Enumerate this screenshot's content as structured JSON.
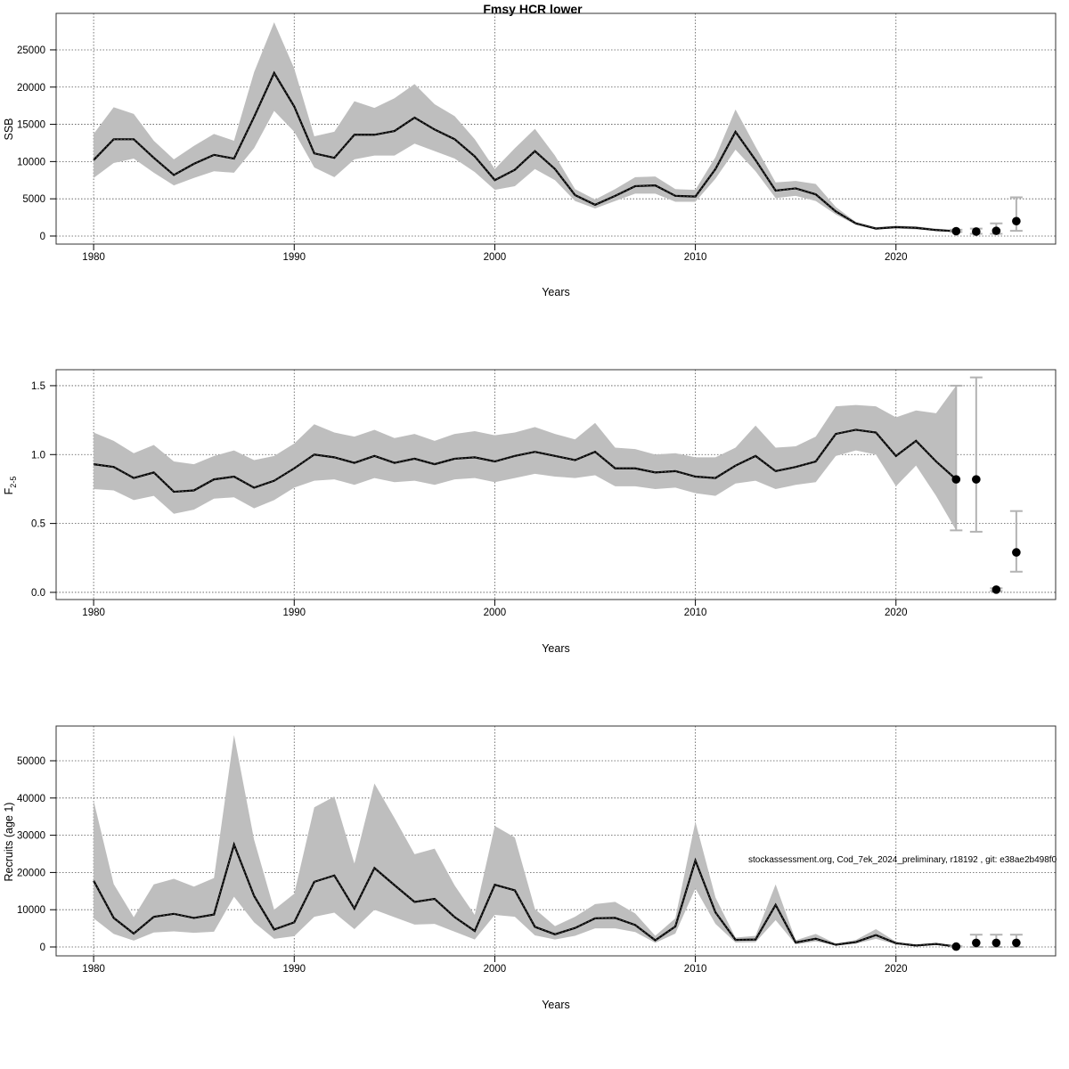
{
  "title": "Fmsy HCR lower",
  "watermark": "stockassessment.org, Cod_7ek_2024_preliminary, r18192 , git: e38ae2b498f0",
  "colors": {
    "band": "#bebebe",
    "line": "#000000",
    "grid": "#555555",
    "errorbar": "#b3b3b3",
    "point": "#000000"
  },
  "chart_data": [
    {
      "type": "line",
      "id": "ssb",
      "xlabel": "Years",
      "ylabel": "SSB",
      "xlim": [
        1978.13,
        2027.96
      ],
      "ylim": [
        -1080,
        29900
      ],
      "xticks": [
        1980,
        1990,
        2000,
        2010,
        2020
      ],
      "yticks": [
        0,
        5000,
        10000,
        15000,
        20000,
        25000
      ],
      "grid": true,
      "x_start": 1980,
      "estimate": [
        10200,
        13000,
        13000,
        10500,
        8200,
        9700,
        10900,
        10400,
        16000,
        21900,
        17400,
        11100,
        10500,
        13600,
        13600,
        14100,
        15900,
        14300,
        13000,
        10700,
        7500,
        8900,
        11400,
        9000,
        5500,
        4200,
        5400,
        6700,
        6800,
        5400,
        5300,
        9000,
        14000,
        10200,
        6100,
        6400,
        5600,
        3300,
        1700,
        1000,
        1200,
        1100,
        800,
        650
      ],
      "lower": [
        7800,
        9800,
        10400,
        8500,
        6800,
        7800,
        8700,
        8500,
        11800,
        16800,
        14000,
        9200,
        7900,
        10300,
        10800,
        10800,
        12400,
        11400,
        10400,
        8600,
        6200,
        6700,
        9000,
        7500,
        4700,
        3700,
        4700,
        5700,
        5700,
        4600,
        4600,
        7700,
        11600,
        8700,
        5100,
        5400,
        4700,
        2900,
        1500,
        900,
        1000,
        900,
        700,
        550
      ],
      "upper": [
        13700,
        17300,
        16400,
        12800,
        10300,
        12100,
        13700,
        12800,
        22000,
        28700,
        22500,
        13400,
        14000,
        18100,
        17200,
        18500,
        20400,
        17700,
        16100,
        13000,
        9000,
        11800,
        14400,
        10800,
        6300,
        4900,
        6300,
        7900,
        8000,
        6300,
        6200,
        10600,
        17000,
        12000,
        7200,
        7400,
        7000,
        3900,
        1900,
        1200,
        1400,
        1300,
        1000,
        800
      ],
      "forecast": {
        "years": [
          2023,
          2024,
          2025,
          2026
        ],
        "values": [
          650,
          600,
          700,
          2000
        ],
        "lower": [
          550,
          300,
          300,
          700
        ],
        "upper": [
          850,
          1000,
          1700,
          5200
        ]
      }
    },
    {
      "type": "line",
      "id": "fbar",
      "xlabel": "Years",
      "ylabel": {
        "main": "F",
        "sub": "2-5"
      },
      "xlim": [
        1978.13,
        2027.96
      ],
      "ylim": [
        -0.052,
        1.616
      ],
      "xticks": [
        1980,
        1990,
        2000,
        2010,
        2020
      ],
      "yticks": [
        0.0,
        0.5,
        1.0,
        1.5
      ],
      "ytick_labels": [
        "0.0",
        "0.5",
        "1.0",
        "1.5"
      ],
      "grid": true,
      "x_start": 1980,
      "estimate": [
        0.93,
        0.91,
        0.83,
        0.87,
        0.73,
        0.74,
        0.82,
        0.84,
        0.76,
        0.81,
        0.9,
        1.0,
        0.98,
        0.94,
        0.99,
        0.94,
        0.97,
        0.93,
        0.97,
        0.98,
        0.95,
        0.99,
        1.02,
        0.99,
        0.96,
        1.02,
        0.9,
        0.9,
        0.87,
        0.88,
        0.84,
        0.83,
        0.92,
        0.99,
        0.88,
        0.91,
        0.95,
        1.15,
        1.18,
        1.16,
        0.99,
        1.1,
        0.95,
        0.82
      ],
      "lower": [
        0.75,
        0.74,
        0.67,
        0.7,
        0.57,
        0.6,
        0.68,
        0.69,
        0.61,
        0.67,
        0.76,
        0.81,
        0.82,
        0.78,
        0.83,
        0.8,
        0.81,
        0.78,
        0.82,
        0.83,
        0.8,
        0.83,
        0.86,
        0.84,
        0.83,
        0.85,
        0.77,
        0.77,
        0.75,
        0.76,
        0.72,
        0.7,
        0.79,
        0.81,
        0.75,
        0.78,
        0.8,
        0.99,
        1.03,
        1.0,
        0.77,
        0.92,
        0.7,
        0.45
      ],
      "upper": [
        1.16,
        1.1,
        1.01,
        1.07,
        0.95,
        0.93,
        0.99,
        1.03,
        0.96,
        0.99,
        1.08,
        1.22,
        1.16,
        1.13,
        1.18,
        1.12,
        1.15,
        1.1,
        1.15,
        1.17,
        1.14,
        1.16,
        1.2,
        1.15,
        1.11,
        1.23,
        1.05,
        1.04,
        1.0,
        1.01,
        0.98,
        0.98,
        1.05,
        1.21,
        1.05,
        1.06,
        1.13,
        1.35,
        1.36,
        1.35,
        1.27,
        1.32,
        1.3,
        1.5
      ],
      "forecast": {
        "years": [
          2023,
          2024,
          2025,
          2026
        ],
        "values": [
          0.82,
          0.82,
          0.02,
          0.29
        ],
        "lower": [
          0.45,
          0.44,
          0.01,
          0.15
        ],
        "upper": [
          1.5,
          1.56,
          0.03,
          0.59
        ]
      }
    },
    {
      "type": "line",
      "id": "recruits",
      "xlabel": "Years",
      "ylabel": "Recruits (age 1)",
      "xlim": [
        1978.13,
        2027.96
      ],
      "ylim": [
        -2390,
        59330
      ],
      "xticks": [
        1980,
        1990,
        2000,
        2010,
        2020
      ],
      "yticks": [
        0,
        10000,
        20000,
        30000,
        40000,
        50000
      ],
      "grid": true,
      "x_start": 1980,
      "estimate": [
        17800,
        7800,
        3600,
        8100,
        8900,
        7800,
        8700,
        27500,
        13700,
        4700,
        6600,
        17500,
        19200,
        10300,
        21200,
        16600,
        12100,
        12900,
        8000,
        4300,
        16700,
        15200,
        5400,
        3400,
        5100,
        7700,
        7800,
        5900,
        1800,
        5500,
        23200,
        9300,
        1900,
        2000,
        11300,
        1200,
        2200,
        600,
        1300,
        3200,
        1000,
        400,
        800,
        100
      ],
      "lower": [
        7700,
        3500,
        1700,
        3900,
        4200,
        3800,
        4100,
        13500,
        6600,
        2200,
        2900,
        8100,
        9200,
        4800,
        10000,
        8000,
        6000,
        6200,
        4100,
        2000,
        8600,
        8100,
        3100,
        2000,
        3000,
        5000,
        5000,
        4000,
        1100,
        3600,
        15700,
        6200,
        1200,
        1300,
        7200,
        700,
        1500,
        400,
        900,
        2200,
        700,
        300,
        500,
        50
      ],
      "upper": [
        39300,
        16900,
        8000,
        16800,
        18300,
        16200,
        18500,
        56900,
        28800,
        10000,
        14300,
        37500,
        40400,
        22400,
        43900,
        34600,
        24900,
        26400,
        16500,
        8600,
        32500,
        29400,
        10200,
        5600,
        8100,
        11500,
        12100,
        9000,
        3000,
        7700,
        33600,
        13300,
        2500,
        3000,
        16800,
        1800,
        3500,
        900,
        1900,
        4800,
        1400,
        600,
        1000,
        200
      ],
      "forecast": {
        "years": [
          2023,
          2024,
          2025,
          2026
        ],
        "values": [
          100,
          1100,
          1100,
          1100
        ],
        "lower": [
          50,
          0,
          0,
          0
        ],
        "upper": [
          200,
          3300,
          3300,
          3300
        ]
      }
    }
  ]
}
